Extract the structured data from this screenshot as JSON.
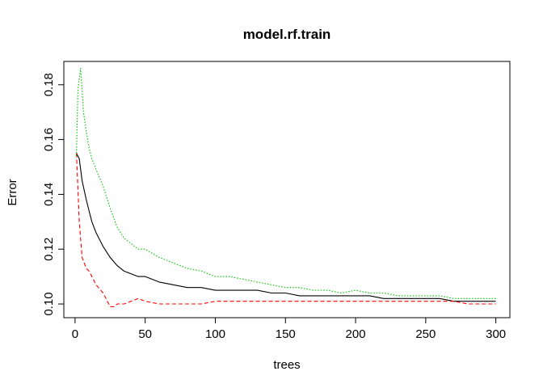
{
  "chart_data": {
    "type": "line",
    "title": "model.rf.train",
    "xlabel": "trees",
    "ylabel": "Error",
    "xlim": [
      -8,
      310
    ],
    "ylim": [
      0.095,
      0.1885
    ],
    "xticks": [
      0,
      50,
      100,
      150,
      200,
      250,
      300
    ],
    "yticks": [
      0.1,
      0.12,
      0.14,
      0.16,
      0.18
    ],
    "ytick_labels": [
      "0.10",
      "0.12",
      "0.14",
      "0.16",
      "0.18"
    ],
    "legend": "none",
    "grid": false,
    "series": [
      {
        "color": "#000000",
        "dash": "solid",
        "x": [
          1,
          3,
          5,
          8,
          10,
          12,
          15,
          20,
          25,
          30,
          35,
          40,
          45,
          50,
          60,
          70,
          80,
          90,
          100,
          110,
          120,
          130,
          140,
          150,
          160,
          170,
          180,
          190,
          200,
          210,
          220,
          230,
          240,
          250,
          260,
          270,
          280,
          290,
          300
        ],
        "y": [
          0.155,
          0.153,
          0.145,
          0.138,
          0.134,
          0.13,
          0.126,
          0.121,
          0.117,
          0.114,
          0.112,
          0.111,
          0.11,
          0.11,
          0.108,
          0.107,
          0.106,
          0.106,
          0.105,
          0.105,
          0.105,
          0.105,
          0.104,
          0.104,
          0.103,
          0.103,
          0.103,
          0.103,
          0.103,
          0.103,
          0.102,
          0.102,
          0.102,
          0.102,
          0.102,
          0.101,
          0.101,
          0.101,
          0.101
        ]
      },
      {
        "color": "#ff0000",
        "dash": "dashed",
        "x": [
          1,
          3,
          5,
          8,
          10,
          12,
          15,
          20,
          22,
          25,
          28,
          30,
          35,
          40,
          45,
          50,
          60,
          70,
          80,
          90,
          100,
          110,
          120,
          130,
          140,
          150,
          160,
          170,
          180,
          190,
          200,
          210,
          220,
          230,
          240,
          250,
          260,
          270,
          280,
          290,
          300
        ],
        "y": [
          0.155,
          0.13,
          0.117,
          0.113,
          0.112,
          0.11,
          0.107,
          0.104,
          0.102,
          0.099,
          0.099,
          0.1,
          0.1,
          0.101,
          0.102,
          0.101,
          0.1,
          0.1,
          0.1,
          0.1,
          0.101,
          0.101,
          0.101,
          0.101,
          0.101,
          0.101,
          0.101,
          0.101,
          0.101,
          0.101,
          0.101,
          0.101,
          0.101,
          0.101,
          0.101,
          0.101,
          0.101,
          0.101,
          0.1,
          0.1,
          0.1
        ]
      },
      {
        "color": "#00c000",
        "dash": "dotted",
        "x": [
          1,
          2,
          4,
          5,
          6,
          8,
          10,
          12,
          15,
          20,
          25,
          30,
          35,
          40,
          45,
          50,
          60,
          70,
          80,
          90,
          100,
          110,
          120,
          130,
          140,
          150,
          160,
          170,
          180,
          190,
          200,
          210,
          220,
          230,
          240,
          250,
          260,
          270,
          280,
          290,
          300
        ],
        "y": [
          0.154,
          0.178,
          0.186,
          0.178,
          0.17,
          0.163,
          0.157,
          0.153,
          0.149,
          0.143,
          0.135,
          0.128,
          0.124,
          0.122,
          0.12,
          0.12,
          0.117,
          0.115,
          0.113,
          0.112,
          0.11,
          0.11,
          0.109,
          0.108,
          0.107,
          0.106,
          0.106,
          0.105,
          0.105,
          0.104,
          0.105,
          0.104,
          0.104,
          0.103,
          0.103,
          0.103,
          0.103,
          0.102,
          0.102,
          0.102,
          0.102
        ]
      }
    ]
  }
}
